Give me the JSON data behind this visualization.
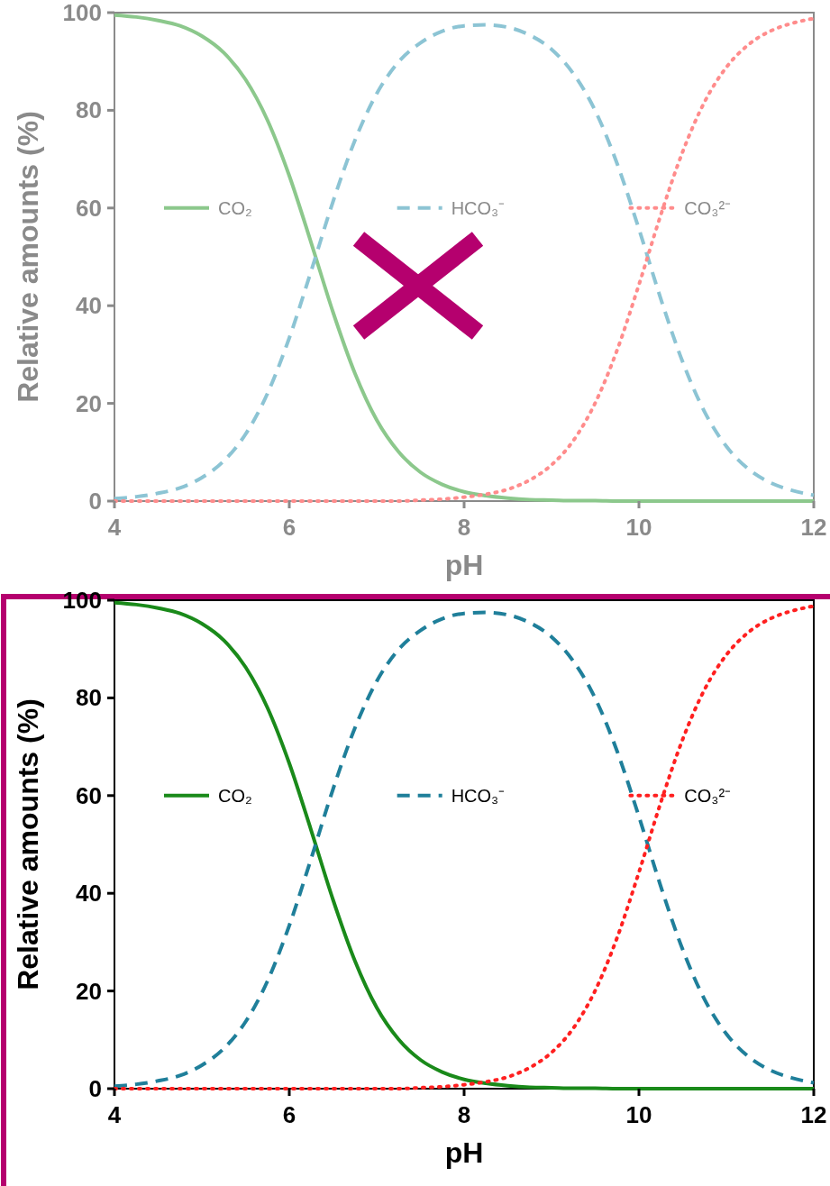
{
  "chart_data": [
    {
      "type": "line",
      "xlabel": "pH",
      "ylabel": "Relative amounts (%)",
      "xlim": [
        4,
        12
      ],
      "ylim": [
        0,
        100
      ],
      "xticks": [
        4,
        6,
        8,
        10,
        12
      ],
      "yticks": [
        0,
        20,
        40,
        60,
        80,
        100
      ],
      "grid": false,
      "legend": "top",
      "x": [
        4,
        4.25,
        4.5,
        4.75,
        5,
        5.25,
        5.5,
        5.75,
        6,
        6.25,
        6.5,
        6.75,
        7,
        7.25,
        7.5,
        7.75,
        8,
        8.25,
        8.5,
        8.75,
        9,
        9.25,
        9.5,
        9.75,
        10,
        10.25,
        10.5,
        10.75,
        11,
        11.25,
        11.5,
        11.75,
        12
      ],
      "series": [
        {
          "name": "CO₂",
          "color": "#8cc88c",
          "line_style": "solid",
          "values": [
            99.5,
            99.1,
            98.4,
            97.3,
            95.2,
            91.8,
            86.3,
            78.0,
            66.6,
            52.9,
            38.7,
            26.2,
            16.6,
            10.1,
            5.9,
            3.4,
            1.9,
            1.1,
            0.6,
            0.3,
            0.2,
            0.1,
            0.1,
            0,
            0,
            0,
            0,
            0,
            0,
            0,
            0,
            0,
            0
          ]
        },
        {
          "name": "HCO₃⁻",
          "color": "#8cc4d4",
          "line_style": "dashed",
          "values": [
            0.5,
            0.9,
            1.6,
            2.7,
            4.8,
            8.2,
            13.7,
            22.0,
            33.4,
            47.1,
            61.3,
            73.8,
            83.4,
            89.9,
            93.8,
            96.2,
            97.3,
            97.5,
            97.0,
            95.4,
            92.5,
            87.5,
            79.9,
            69.1,
            55.7,
            41.4,
            28.5,
            18.3,
            11.2,
            6.6,
            3.8,
            2.2,
            1.2
          ]
        },
        {
          "name": "CO₃²⁻",
          "color": "#ff8c8c",
          "line_style": "dotted",
          "values": [
            0,
            0,
            0,
            0,
            0,
            0,
            0,
            0,
            0,
            0,
            0,
            0,
            0,
            0,
            0.2,
            0.4,
            0.8,
            1.4,
            2.4,
            4.3,
            7.4,
            12.4,
            20.1,
            30.9,
            44.3,
            58.6,
            71.5,
            81.7,
            88.8,
            93.4,
            96.2,
            97.8,
            98.8
          ]
        }
      ]
    },
    {
      "type": "line",
      "xlabel": "pH",
      "ylabel": "Relative amounts (%)",
      "xlim": [
        4,
        12
      ],
      "ylim": [
        0,
        100
      ],
      "xticks": [
        4,
        6,
        8,
        10,
        12
      ],
      "yticks": [
        0,
        20,
        40,
        60,
        80,
        100
      ],
      "grid": false,
      "legend": "top",
      "x": [
        4,
        4.25,
        4.5,
        4.75,
        5,
        5.25,
        5.5,
        5.75,
        6,
        6.25,
        6.5,
        6.75,
        7,
        7.25,
        7.5,
        7.75,
        8,
        8.25,
        8.5,
        8.75,
        9,
        9.25,
        9.5,
        9.75,
        10,
        10.25,
        10.5,
        10.75,
        11,
        11.25,
        11.5,
        11.75,
        12
      ],
      "series": [
        {
          "name": "CO₂",
          "color": "#1a8a1a",
          "line_style": "solid",
          "values": [
            99.5,
            99.1,
            98.4,
            97.3,
            95.2,
            91.8,
            86.3,
            78.0,
            66.6,
            52.9,
            38.7,
            26.2,
            16.6,
            10.1,
            5.9,
            3.4,
            1.9,
            1.1,
            0.6,
            0.3,
            0.2,
            0.1,
            0.1,
            0,
            0,
            0,
            0,
            0,
            0,
            0,
            0,
            0,
            0
          ]
        },
        {
          "name": "HCO₃⁻",
          "color": "#1f7f9a",
          "line_style": "dashed",
          "values": [
            0.5,
            0.9,
            1.6,
            2.7,
            4.8,
            8.2,
            13.7,
            22.0,
            33.4,
            47.1,
            61.3,
            73.8,
            83.4,
            89.9,
            93.8,
            96.2,
            97.3,
            97.5,
            97.0,
            95.4,
            92.5,
            87.5,
            79.9,
            69.1,
            55.7,
            41.4,
            28.5,
            18.3,
            11.2,
            6.6,
            3.8,
            2.2,
            1.2
          ]
        },
        {
          "name": "CO₃²⁻",
          "color": "#ff2020",
          "line_style": "dotted",
          "values": [
            0,
            0,
            0,
            0,
            0,
            0,
            0,
            0,
            0,
            0,
            0,
            0,
            0,
            0,
            0.2,
            0.4,
            0.8,
            1.4,
            2.4,
            4.3,
            7.4,
            12.4,
            20.1,
            30.9,
            44.3,
            58.6,
            71.5,
            81.7,
            88.8,
            93.4,
            96.2,
            97.8,
            98.8
          ]
        }
      ]
    }
  ]
}
